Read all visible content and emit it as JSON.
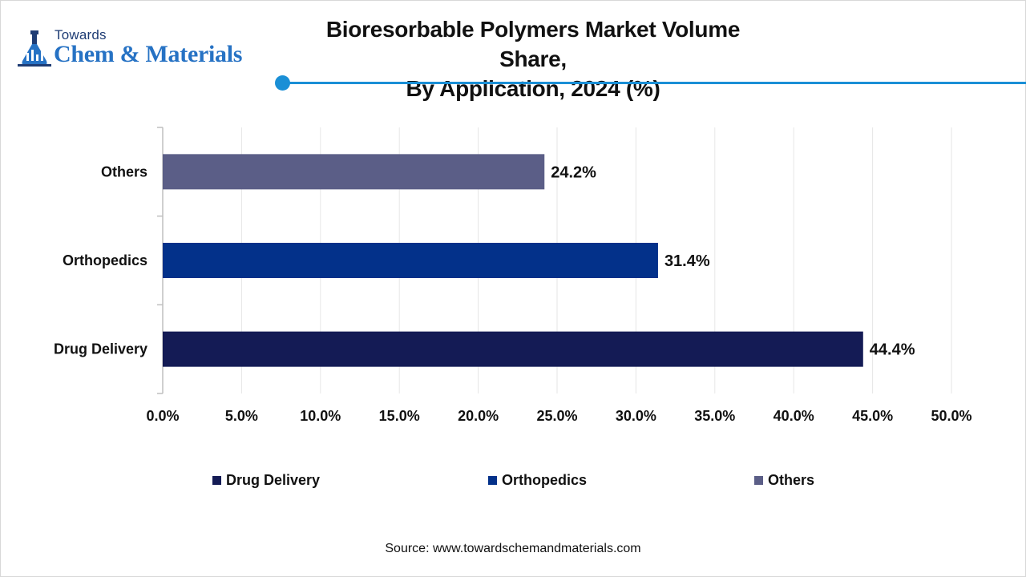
{
  "logo": {
    "line1": "Towards",
    "line2": "Chem & Materials"
  },
  "header": {
    "title_line1": "Bioresorbable Polymers Market Volume Share,",
    "title_line2": "By Application, 2024 (%)"
  },
  "colors": {
    "drug_delivery": "#141b55",
    "orthopedics": "#03318a",
    "others": "#5b5e87",
    "accent": "#1a8fd6",
    "grid": "#e6e6e6",
    "axis": "#bfbfbf"
  },
  "chart_data": {
    "type": "bar",
    "orientation": "horizontal",
    "title": "Bioresorbable Polymers Market Volume Share, By Application, 2024 (%)",
    "categories": [
      "Drug Delivery",
      "Orthopedics",
      "Others"
    ],
    "values": [
      44.4,
      31.4,
      24.2
    ],
    "value_labels": [
      "44.4%",
      "31.4%",
      "24.2%"
    ],
    "xlim": [
      0,
      50
    ],
    "x_ticks": [
      0,
      5,
      10,
      15,
      20,
      25,
      30,
      35,
      40,
      45,
      50
    ],
    "x_tick_labels": [
      "0.0%",
      "5.0%",
      "10.0%",
      "15.0%",
      "20.0%",
      "25.0%",
      "30.0%",
      "35.0%",
      "40.0%",
      "45.0%",
      "50.0%"
    ],
    "grid": true,
    "legend": {
      "position": "bottom",
      "entries": [
        "Drug Delivery",
        "Orthopedics",
        "Others"
      ]
    }
  },
  "footer": {
    "source": "Source: www.towardschemandmaterials.com"
  }
}
